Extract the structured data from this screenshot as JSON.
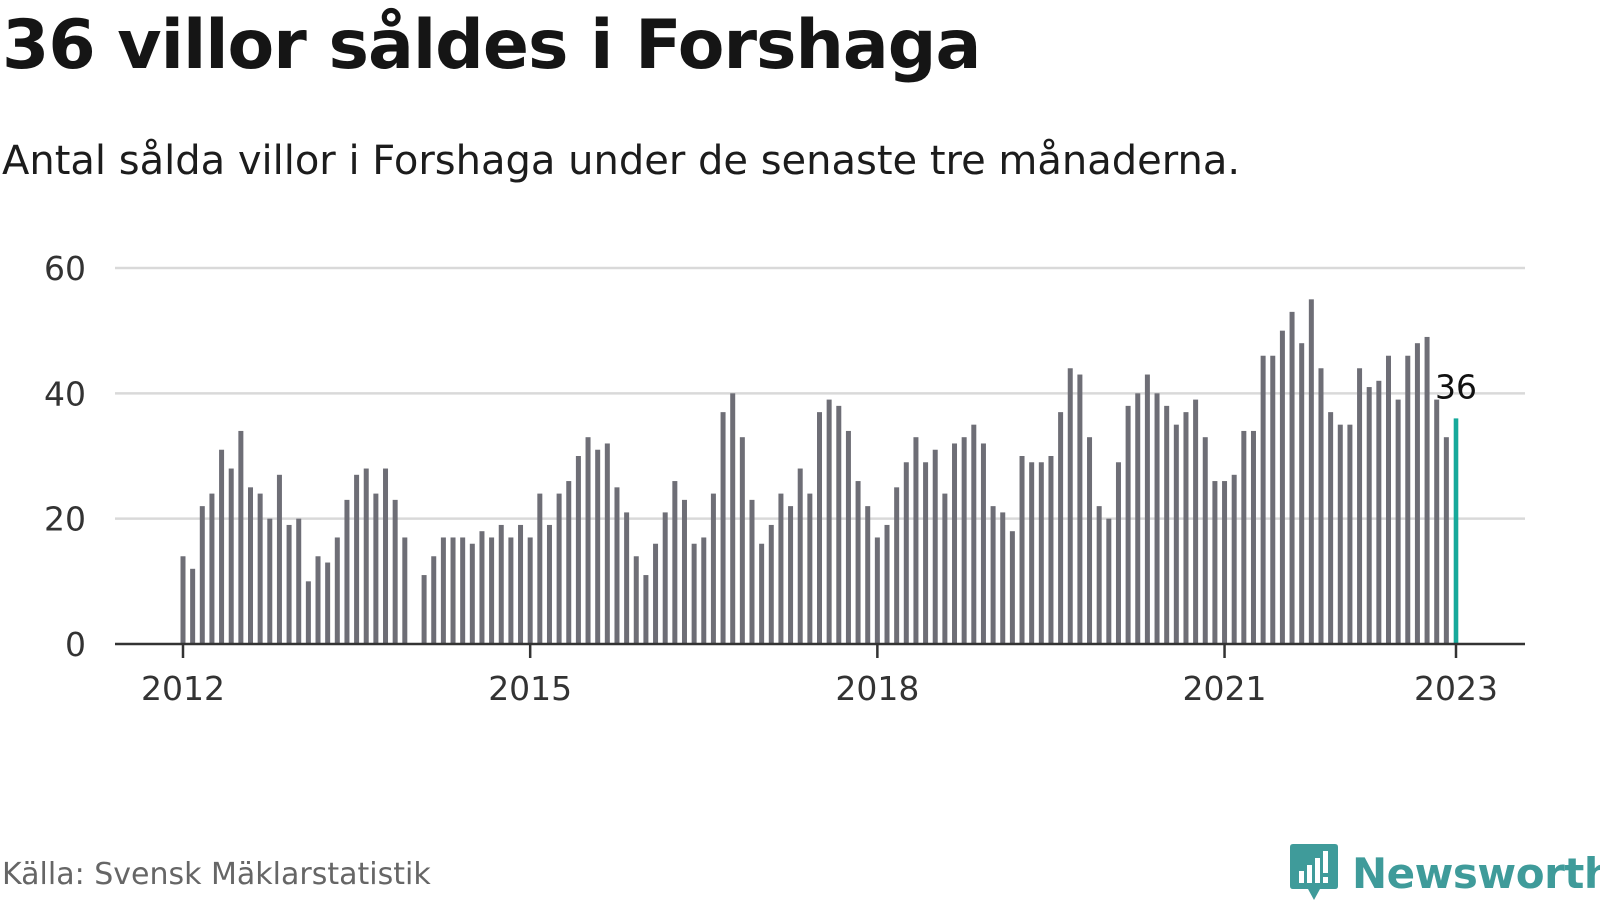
{
  "header": {
    "title": "36 villor såldes i Forshaga",
    "subtitle": "Antal sålda villor i Forshaga under de senaste tre månaderna."
  },
  "footer": {
    "source": "Källa: Svensk Mäklarstatistik",
    "logo_name": "Newsworthy"
  },
  "colors": {
    "bar": "#6e6e76",
    "highlight": "#16a99b",
    "grid": "#d9d9d9",
    "axis": "#333333",
    "brand": "#3f9b9a"
  },
  "chart_data": {
    "type": "bar",
    "title": "36 villor såldes i Forshaga",
    "subtitle": "Antal sålda villor i Forshaga under de senaste tre månaderna.",
    "xlabel": "",
    "ylabel": "",
    "ylim": [
      0,
      60
    ],
    "yticks": [
      0,
      20,
      40,
      60
    ],
    "grid": true,
    "x_ticks": [
      {
        "x": "2012-01",
        "label": "2012"
      },
      {
        "x": "2015-01",
        "label": "2015"
      },
      {
        "x": "2018-01",
        "label": "2018"
      },
      {
        "x": "2021-01",
        "label": "2021"
      },
      {
        "x": "2023-01",
        "label": "2023"
      }
    ],
    "highlight": {
      "x": "2023-01",
      "label": "36"
    },
    "x": [
      "2012-01",
      "2012-02",
      "2012-03",
      "2012-04",
      "2012-05",
      "2012-06",
      "2012-07",
      "2012-08",
      "2012-09",
      "2012-10",
      "2012-11",
      "2012-12",
      "2013-01",
      "2013-02",
      "2013-03",
      "2013-04",
      "2013-05",
      "2013-06",
      "2013-07",
      "2013-08",
      "2013-09",
      "2013-10",
      "2013-11",
      "2013-12",
      "2014-01",
      "2014-02",
      "2014-03",
      "2014-04",
      "2014-05",
      "2014-06",
      "2014-07",
      "2014-08",
      "2014-09",
      "2014-10",
      "2014-11",
      "2014-12",
      "2015-01",
      "2015-02",
      "2015-03",
      "2015-04",
      "2015-05",
      "2015-06",
      "2015-07",
      "2015-08",
      "2015-09",
      "2015-10",
      "2015-11",
      "2015-12",
      "2016-01",
      "2016-02",
      "2016-03",
      "2016-04",
      "2016-05",
      "2016-06",
      "2016-07",
      "2016-08",
      "2016-09",
      "2016-10",
      "2016-11",
      "2016-12",
      "2017-01",
      "2017-02",
      "2017-03",
      "2017-04",
      "2017-05",
      "2017-06",
      "2017-07",
      "2017-08",
      "2017-09",
      "2017-10",
      "2017-11",
      "2017-12",
      "2018-01",
      "2018-02",
      "2018-03",
      "2018-04",
      "2018-05",
      "2018-06",
      "2018-07",
      "2018-08",
      "2018-09",
      "2018-10",
      "2018-11",
      "2018-12",
      "2019-01",
      "2019-02",
      "2019-03",
      "2019-04",
      "2019-05",
      "2019-06",
      "2019-07",
      "2019-08",
      "2019-09",
      "2019-10",
      "2019-11",
      "2019-12",
      "2020-01",
      "2020-02",
      "2020-03",
      "2020-04",
      "2020-05",
      "2020-06",
      "2020-07",
      "2020-08",
      "2020-09",
      "2020-10",
      "2020-11",
      "2020-12",
      "2021-01",
      "2021-02",
      "2021-03",
      "2021-04",
      "2021-05",
      "2021-06",
      "2021-07",
      "2021-08",
      "2021-09",
      "2021-10",
      "2021-11",
      "2021-12",
      "2022-01",
      "2022-02",
      "2022-03",
      "2022-04",
      "2022-05",
      "2022-06",
      "2022-07",
      "2022-08",
      "2022-09",
      "2022-10",
      "2022-11",
      "2022-12",
      "2023-01"
    ],
    "values": [
      14,
      12,
      22,
      24,
      31,
      28,
      34,
      25,
      24,
      20,
      27,
      19,
      20,
      10,
      14,
      13,
      17,
      23,
      27,
      28,
      24,
      28,
      23,
      17,
      null,
      11,
      14,
      17,
      17,
      17,
      16,
      18,
      17,
      19,
      17,
      19,
      17,
      24,
      19,
      24,
      26,
      30,
      33,
      31,
      32,
      25,
      21,
      14,
      11,
      16,
      21,
      26,
      23,
      16,
      17,
      24,
      37,
      40,
      33,
      23,
      16,
      19,
      24,
      22,
      28,
      24,
      37,
      39,
      38,
      34,
      26,
      22,
      17,
      19,
      25,
      29,
      33,
      29,
      31,
      24,
      32,
      33,
      35,
      32,
      22,
      21,
      18,
      30,
      29,
      29,
      30,
      37,
      44,
      43,
      33,
      22,
      20,
      29,
      38,
      40,
      43,
      40,
      38,
      35,
      37,
      39,
      33,
      26,
      26,
      27,
      34,
      34,
      46,
      46,
      50,
      53,
      48,
      55,
      44,
      37,
      35,
      35,
      44,
      41,
      42,
      46,
      39,
      46,
      48,
      49,
      39,
      33,
      36
    ]
  }
}
